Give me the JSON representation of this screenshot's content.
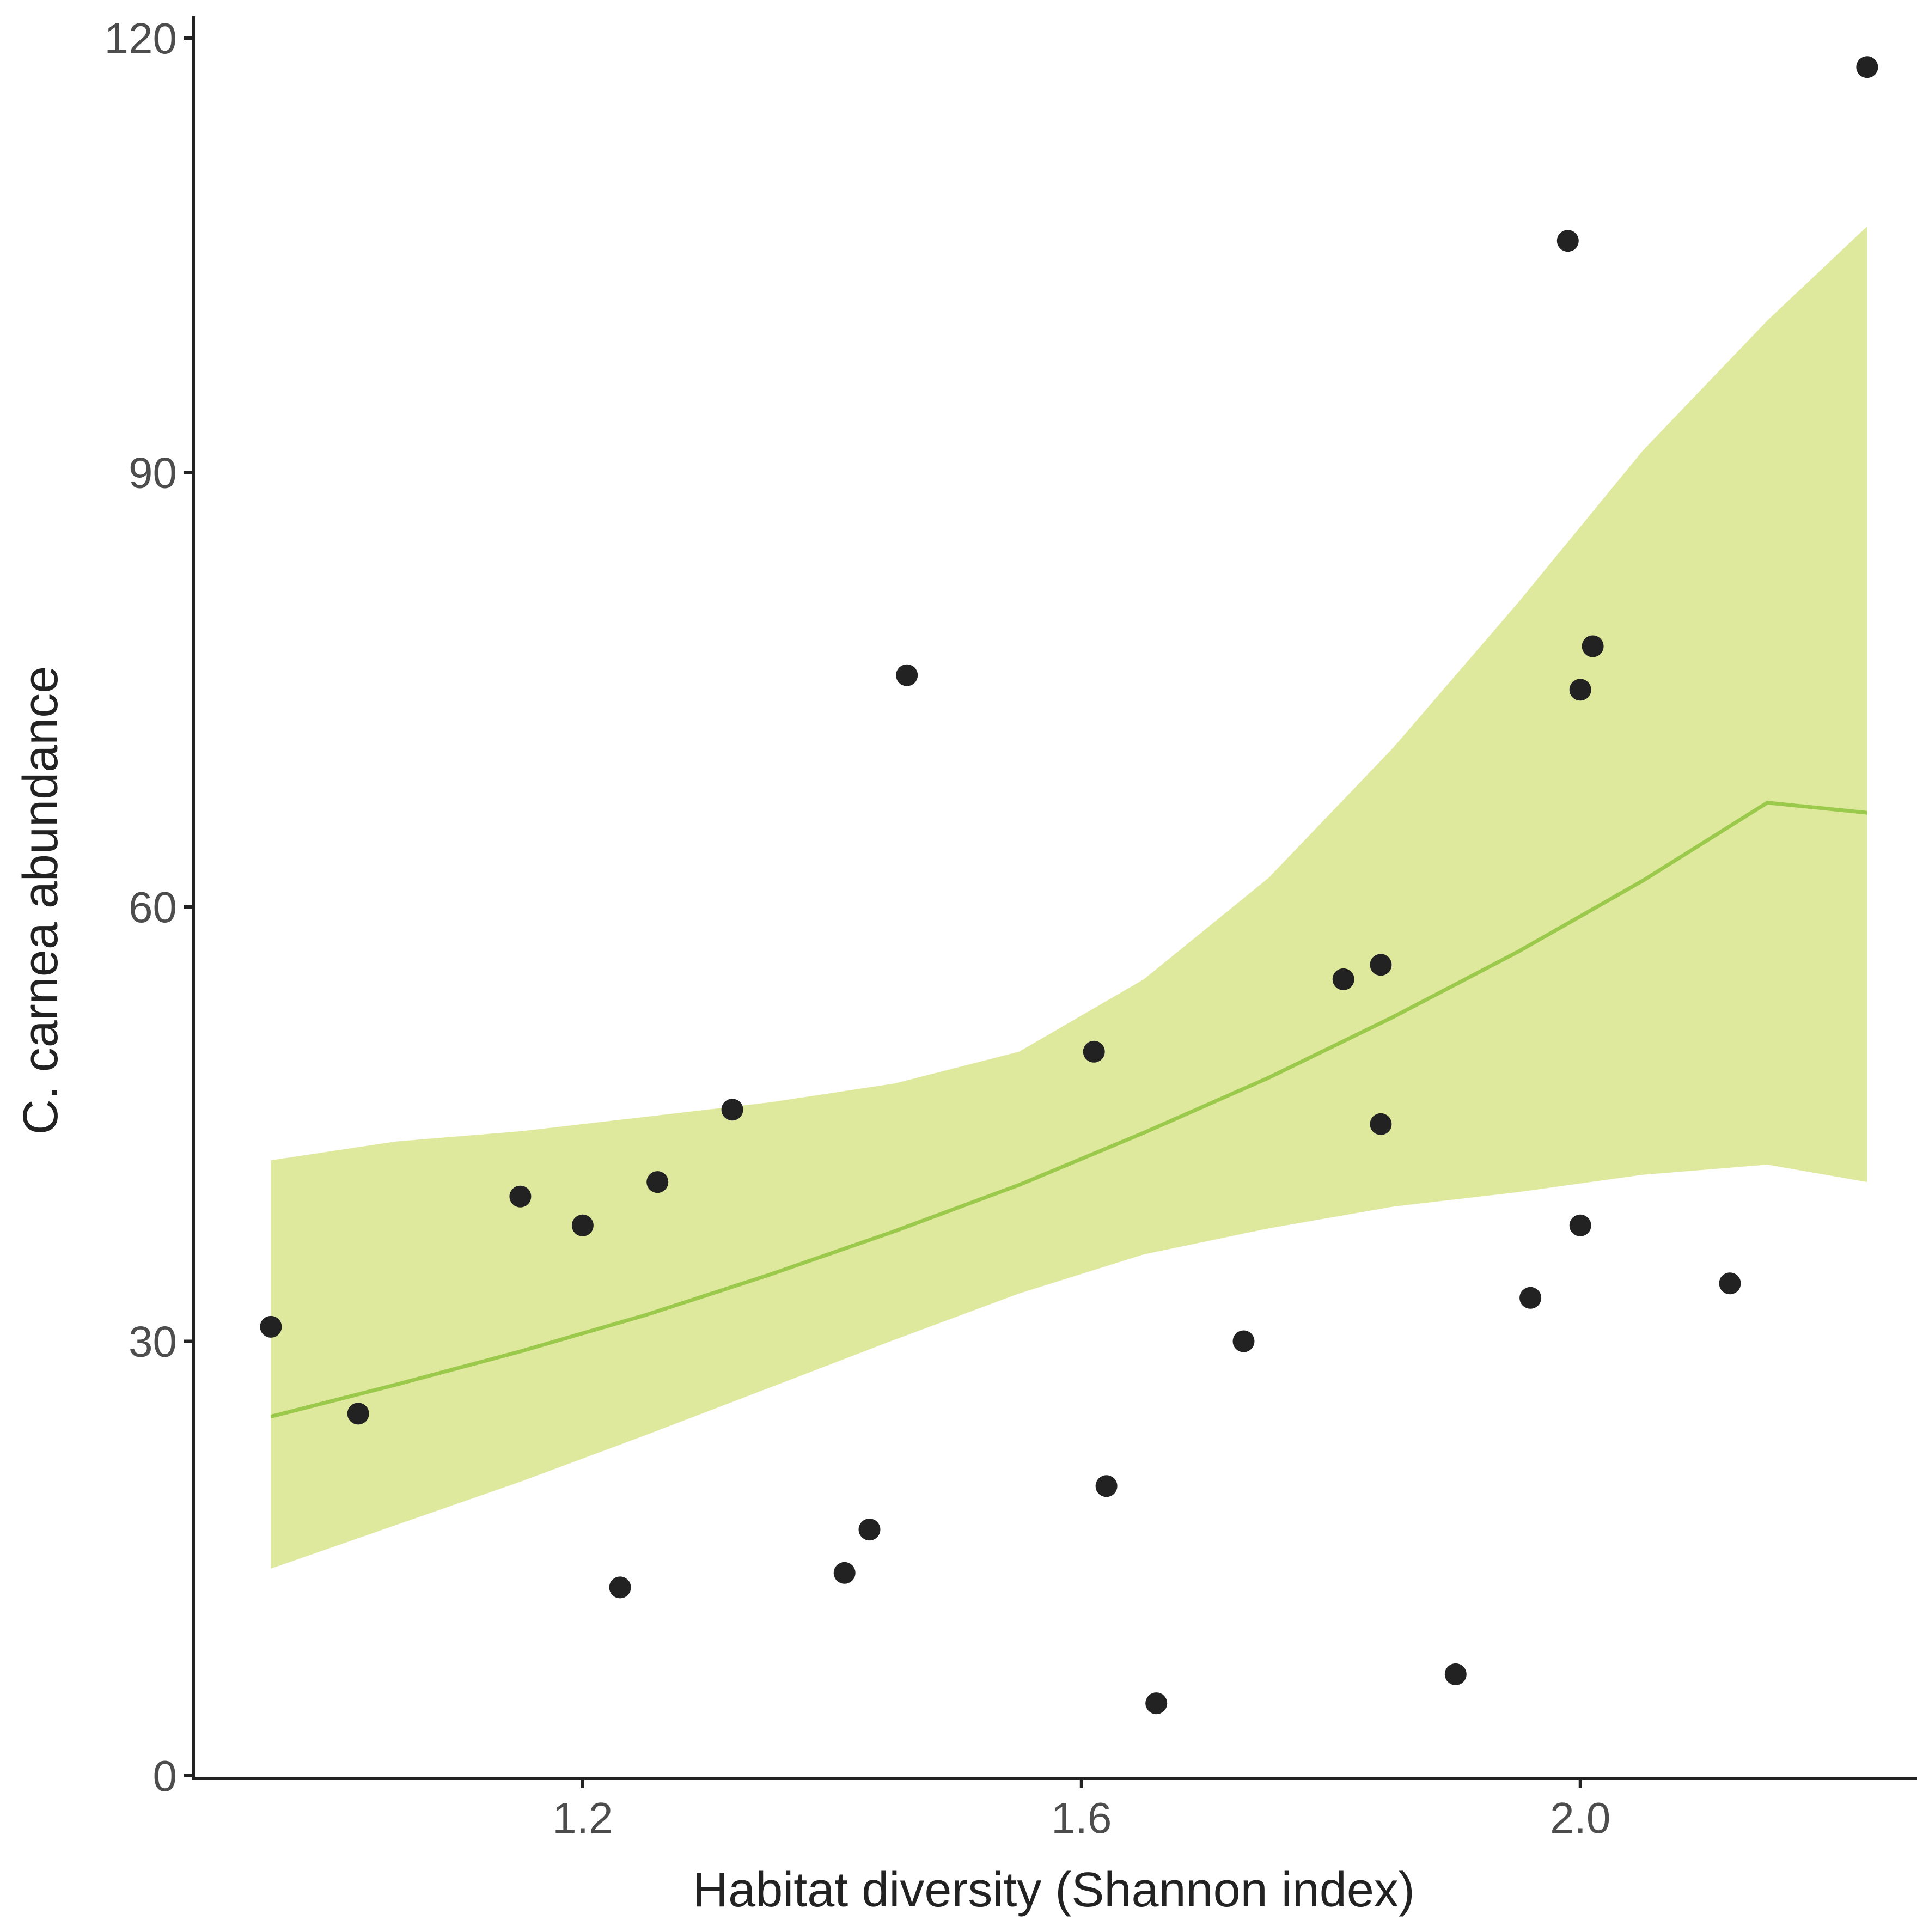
{
  "colors": {
    "ribbon": "#dfe99e",
    "fit_line": "#9bc94b",
    "points": "#222222",
    "axis": "#222222",
    "tick_text": "#4d4d4d"
  },
  "chart_data": {
    "type": "scatter",
    "xlabel": "Habitat diversity  (Shannon index)",
    "ylabel": "C. carnea abundance",
    "xlim": [
      0.89,
      2.27
    ],
    "ylim": [
      0,
      120
    ],
    "x_ticks": [
      1.2,
      1.6,
      2.0
    ],
    "x_tick_labels": [
      "1.2",
      "1.6",
      "2.0"
    ],
    "y_ticks": [
      0,
      30,
      60,
      90,
      120
    ],
    "y_tick_labels": [
      "0",
      "30",
      "60",
      "90",
      "120"
    ],
    "grid": false,
    "legend": "none",
    "points": [
      {
        "x": 0.95,
        "y": 31
      },
      {
        "x": 1.02,
        "y": 25
      },
      {
        "x": 1.15,
        "y": 40
      },
      {
        "x": 1.2,
        "y": 38
      },
      {
        "x": 1.23,
        "y": 13
      },
      {
        "x": 1.26,
        "y": 41
      },
      {
        "x": 1.32,
        "y": 46
      },
      {
        "x": 1.41,
        "y": 14
      },
      {
        "x": 1.43,
        "y": 17
      },
      {
        "x": 1.46,
        "y": 76
      },
      {
        "x": 1.61,
        "y": 50
      },
      {
        "x": 1.62,
        "y": 20
      },
      {
        "x": 1.66,
        "y": 5
      },
      {
        "x": 1.73,
        "y": 30
      },
      {
        "x": 1.81,
        "y": 55
      },
      {
        "x": 1.84,
        "y": 56
      },
      {
        "x": 1.84,
        "y": 45
      },
      {
        "x": 1.9,
        "y": 7
      },
      {
        "x": 1.96,
        "y": 33
      },
      {
        "x": 1.99,
        "y": 106
      },
      {
        "x": 2.0,
        "y": 38
      },
      {
        "x": 2.0,
        "y": 75
      },
      {
        "x": 2.01,
        "y": 78
      },
      {
        "x": 2.12,
        "y": 34
      },
      {
        "x": 2.23,
        "y": 118
      }
    ],
    "fit": {
      "x": [
        0.95,
        1.05,
        1.15,
        1.25,
        1.35,
        1.45,
        1.55,
        1.65,
        1.75,
        1.85,
        1.95,
        2.05,
        2.15,
        2.23
      ],
      "y": [
        24.8,
        27.0,
        29.3,
        31.8,
        34.6,
        37.6,
        40.8,
        44.4,
        48.2,
        52.4,
        56.9,
        61.8,
        67.2,
        66.5
      ],
      "lower": [
        14.3,
        17.3,
        20.3,
        23.5,
        26.8,
        30.1,
        33.3,
        36.0,
        37.8,
        39.3,
        40.3,
        41.5,
        42.2,
        41.0
      ],
      "upper": [
        42.5,
        43.8,
        44.5,
        45.5,
        46.5,
        47.8,
        50.0,
        55.0,
        62.0,
        71.0,
        81.0,
        91.5,
        100.5,
        107.0
      ]
    }
  }
}
